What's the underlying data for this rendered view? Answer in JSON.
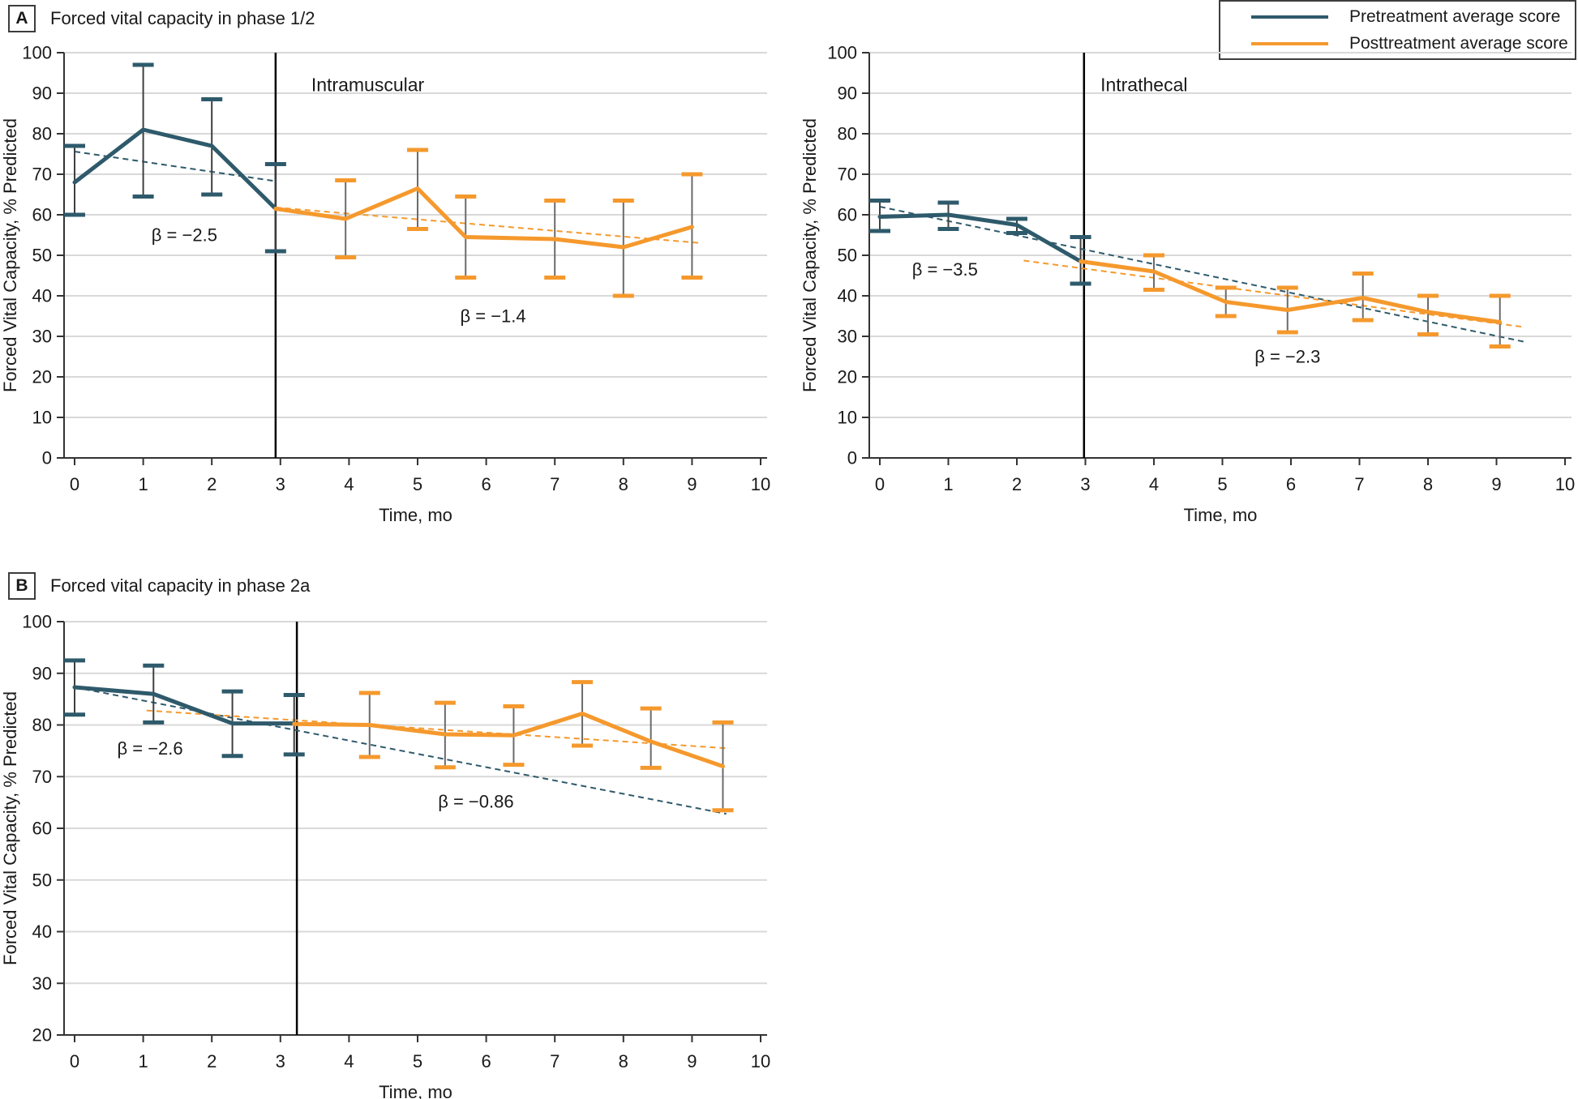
{
  "legend": {
    "items": [
      {
        "label": "Pretreatment average score",
        "color": "#2E5A6B"
      },
      {
        "label": "Posttreatment average score",
        "color": "#F5992D"
      }
    ]
  },
  "panels": [
    {
      "label": "A",
      "title": "Forced vital capacity in phase 1/2"
    },
    {
      "label": "B",
      "title": "Forced vital capacity in phase 2a"
    }
  ],
  "chart_data": [
    {
      "type": "line",
      "panel": "A",
      "title": "Forced vital capacity in phase 1/2 — Intramuscular",
      "xlabel": "Time, mo",
      "ylabel": "Forced Vital Capacity, % Predicted",
      "xlim": [
        0,
        10
      ],
      "ylim": [
        0,
        100
      ],
      "ystep": 10,
      "xticks": [
        0,
        1,
        2,
        3,
        4,
        5,
        6,
        7,
        8,
        9,
        10
      ],
      "grid": true,
      "treatment_line": {
        "x": 2.93,
        "label": "Intramuscular",
        "label_x": 3.45,
        "label_y": 90.5
      },
      "series": [
        {
          "name": "Pretreatment average score",
          "color": "#2E5A6B",
          "stem": "#3F3F3F",
          "points": [
            {
              "x": 0,
              "y": 68,
              "lo": 60,
              "hi": 77
            },
            {
              "x": 1,
              "y": 81,
              "lo": 64.5,
              "hi": 97
            },
            {
              "x": 2,
              "y": 77,
              "lo": 65,
              "hi": 88.5
            },
            {
              "x": 2.93,
              "y": 61.5,
              "lo": 51,
              "hi": 72.5
            }
          ]
        },
        {
          "name": "Posttreatment average score",
          "color": "#F5992D",
          "stem": "#6B6B6B",
          "points": [
            {
              "x": 2.93,
              "y": 61.5
            },
            {
              "x": 3.95,
              "y": 59,
              "lo": 49.5,
              "hi": 68.5
            },
            {
              "x": 5,
              "y": 66.5,
              "lo": 56.5,
              "hi": 76
            },
            {
              "x": 5.7,
              "y": 54.5,
              "lo": 44.5,
              "hi": 64.5
            },
            {
              "x": 7,
              "y": 54,
              "lo": 44.5,
              "hi": 63.5
            },
            {
              "x": 8,
              "y": 52,
              "lo": 40,
              "hi": 63.5
            },
            {
              "x": 9,
              "y": 57,
              "lo": 44.5,
              "hi": 70
            }
          ]
        }
      ],
      "trends": [
        {
          "beta": "β = −2.5",
          "color": "#2E5A6B",
          "x1": 0,
          "y1": 75.6,
          "x2": 2.93,
          "y2": 68.3,
          "label_x": 1.6,
          "label_y": 53.5
        },
        {
          "beta": "β = −1.4",
          "color": "#F5992D",
          "x1": 2.93,
          "y1": 61.8,
          "x2": 9.15,
          "y2": 53,
          "label_x": 6.1,
          "label_y": 33.5
        }
      ]
    },
    {
      "type": "line",
      "panel": "A",
      "title": "Forced vital capacity in phase 1/2 — Intrathecal",
      "xlabel": "Time, mo",
      "ylabel": "Forced Vital Capacity, % Predicted",
      "xlim": [
        0,
        10
      ],
      "ylim": [
        0,
        100
      ],
      "ystep": 10,
      "xticks": [
        0,
        1,
        2,
        3,
        4,
        5,
        6,
        7,
        8,
        9,
        10
      ],
      "grid": true,
      "treatment_line": {
        "x": 2.98,
        "label": "Intrathecal",
        "label_x": 3.22,
        "label_y": 90.5
      },
      "series": [
        {
          "name": "Pretreatment average score",
          "color": "#2E5A6B",
          "stem": "#3F3F3F",
          "points": [
            {
              "x": 0,
              "y": 59.5,
              "lo": 56,
              "hi": 63.5
            },
            {
              "x": 1,
              "y": 60,
              "lo": 56.5,
              "hi": 63
            },
            {
              "x": 2,
              "y": 57.5,
              "lo": 55.5,
              "hi": 59
            },
            {
              "x": 2.93,
              "y": 48.5,
              "lo": 43,
              "hi": 54.5
            }
          ]
        },
        {
          "name": "Posttreatment average score",
          "color": "#F5992D",
          "stem": "#6B6B6B",
          "points": [
            {
              "x": 2.93,
              "y": 48.5
            },
            {
              "x": 4,
              "y": 46,
              "lo": 41.5,
              "hi": 50
            },
            {
              "x": 5.05,
              "y": 38.5,
              "lo": 35,
              "hi": 42
            },
            {
              "x": 5.95,
              "y": 36.5,
              "lo": 31,
              "hi": 42
            },
            {
              "x": 7.05,
              "y": 39.5,
              "lo": 34,
              "hi": 45.5
            },
            {
              "x": 8,
              "y": 36,
              "lo": 30.5,
              "hi": 40
            },
            {
              "x": 9.05,
              "y": 33.5,
              "lo": 27.5,
              "hi": 40
            }
          ]
        }
      ],
      "trends": [
        {
          "beta": "β = −3.5",
          "color": "#2E5A6B",
          "x1": 0,
          "y1": 62,
          "x2": 9.45,
          "y2": 28.5,
          "label_x": 0.95,
          "label_y": 45
        },
        {
          "beta": "β = −2.3",
          "color": "#F5992D",
          "x1": 2.1,
          "y1": 48.7,
          "x2": 9.4,
          "y2": 32.3,
          "label_x": 5.95,
          "label_y": 23.5
        }
      ]
    },
    {
      "type": "line",
      "panel": "B",
      "title": "Forced vital capacity in phase 2a",
      "xlabel": "Time, mo",
      "ylabel": "Forced Vital Capacity, % Predicted",
      "xlim": [
        0,
        10
      ],
      "ylim": [
        20,
        100
      ],
      "ystep": 10,
      "xticks": [
        0,
        1,
        2,
        3,
        4,
        5,
        6,
        7,
        8,
        9,
        10
      ],
      "grid": true,
      "treatment_line": {
        "x": 3.24,
        "label": null,
        "label_x": null,
        "label_y": null
      },
      "series": [
        {
          "name": "Pretreatment average score",
          "color": "#2E5A6B",
          "stem": "#3F3F3F",
          "points": [
            {
              "x": 0,
              "y": 87.3,
              "lo": 82,
              "hi": 92.5
            },
            {
              "x": 1.15,
              "y": 86,
              "lo": 80.5,
              "hi": 91.5
            },
            {
              "x": 2.3,
              "y": 80.3,
              "lo": 74,
              "hi": 86.5
            },
            {
              "x": 3.2,
              "y": 80.3,
              "lo": 74.3,
              "hi": 85.8
            }
          ]
        },
        {
          "name": "Posttreatment average score",
          "color": "#F5992D",
          "stem": "#6B6B6B",
          "points": [
            {
              "x": 3.2,
              "y": 80.2
            },
            {
              "x": 4.3,
              "y": 80,
              "lo": 73.8,
              "hi": 86.2
            },
            {
              "x": 5.4,
              "y": 78.2,
              "lo": 71.8,
              "hi": 84.3
            },
            {
              "x": 6.4,
              "y": 78,
              "lo": 72.3,
              "hi": 83.6
            },
            {
              "x": 7.4,
              "y": 82.2,
              "lo": 76,
              "hi": 88.3
            },
            {
              "x": 8.4,
              "y": 76.8,
              "lo": 71.7,
              "hi": 83.2
            },
            {
              "x": 9.45,
              "y": 72,
              "lo": 63.5,
              "hi": 80.5
            }
          ]
        }
      ],
      "trends": [
        {
          "beta": "β = −2.6",
          "color": "#2E5A6B",
          "x1": 0,
          "y1": 87.3,
          "x2": 9.5,
          "y2": 62.8,
          "label_x": 1.1,
          "label_y": 74.3
        },
        {
          "beta": "β = −0.86",
          "color": "#F5992D",
          "x1": 1.05,
          "y1": 82.8,
          "x2": 9.5,
          "y2": 75.5,
          "label_x": 5.85,
          "label_y": 64
        }
      ]
    }
  ]
}
